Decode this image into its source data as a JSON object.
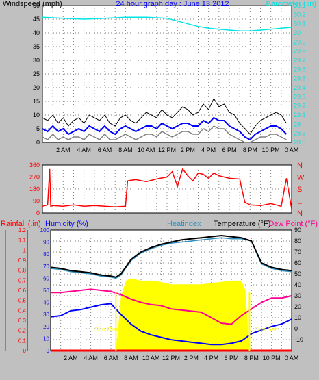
{
  "title": "24 hour graph day : June 13 2012",
  "colors": {
    "background": "#c0c0c0",
    "plot": "#ffffff",
    "grid": "#808080",
    "wind_gust": "#000000",
    "wind_avg": "#0000ff",
    "wind_min": "#808080",
    "barometer": "#00e5e5",
    "direction": "#ff0000",
    "temperature": "#000000",
    "heatindex": "#3090c0",
    "dewpoint": "#ff0090",
    "humidity": "#0000ff",
    "solar": "#ffff00",
    "rainfall": "#ff0000",
    "title": "#0000ff"
  },
  "chart_data": [
    {
      "type": "line",
      "name": "wind-barometer",
      "ylabel_left": "Windspeed (mph)",
      "ylabel_right": "Barometer (.in)",
      "ylim_left": [
        0,
        50
      ],
      "yticks_left": [
        "0",
        "5",
        "10",
        "15",
        "20",
        "25",
        "30",
        "35",
        "40",
        "45",
        "50"
      ],
      "ylim_right": [
        28.8,
        30.3
      ],
      "yticks_right": [
        "28.8",
        "28.9",
        "29",
        "29.1",
        "29.2",
        "29.3",
        "29.4",
        "29.5",
        "29.6",
        "29.7",
        "29.8",
        "29.9",
        "30",
        "30.1",
        "30.2",
        "30.3"
      ],
      "xlim": [
        0,
        24
      ],
      "xticks": [
        "2 AM",
        "4 AM",
        "6 AM",
        "8 AM",
        "10 AM",
        "12 PM",
        "2 PM",
        "4 PM",
        "6 PM",
        "8 PM",
        "10 PM",
        "0 AM"
      ],
      "grid": true,
      "series": [
        {
          "key": "gust",
          "x": [
            0,
            0.5,
            1,
            1.5,
            2,
            2.5,
            3,
            3.5,
            4,
            4.5,
            5,
            5.5,
            6,
            6.5,
            7,
            7.5,
            8,
            8.5,
            9,
            9.5,
            10,
            10.5,
            11,
            11.5,
            12,
            12.5,
            13,
            13.5,
            14,
            14.5,
            15,
            15.5,
            16,
            16.5,
            17,
            17.5,
            18,
            18.5,
            19,
            19.5,
            20,
            20.5,
            21,
            21.5,
            22,
            22.5,
            23,
            23.5
          ],
          "values": [
            9,
            8,
            10,
            7,
            9,
            6,
            8,
            9,
            7,
            10,
            9,
            8,
            10,
            7,
            6,
            9,
            10,
            8,
            7,
            9,
            11,
            10,
            9,
            12,
            10,
            9,
            11,
            13,
            12,
            10,
            11,
            14,
            12,
            16,
            13,
            14,
            11,
            10,
            7,
            5,
            3,
            6,
            8,
            9,
            10,
            11,
            10,
            7
          ]
        },
        {
          "key": "avg",
          "x": [
            0,
            0.5,
            1,
            1.5,
            2,
            2.5,
            3,
            3.5,
            4,
            4.5,
            5,
            5.5,
            6,
            6.5,
            7,
            7.5,
            8,
            8.5,
            9,
            9.5,
            10,
            10.5,
            11,
            11.5,
            12,
            12.5,
            13,
            13.5,
            14,
            14.5,
            15,
            15.5,
            16,
            16.5,
            17,
            17.5,
            18,
            18.5,
            19,
            19.5,
            20,
            20.5,
            21,
            21.5,
            22,
            22.5,
            23,
            23.5
          ],
          "values": [
            5,
            4,
            6,
            4,
            5,
            3,
            4,
            5,
            4,
            6,
            5,
            4,
            6,
            4,
            3,
            5,
            6,
            5,
            4,
            5,
            6,
            6,
            5,
            7,
            6,
            5,
            6,
            7,
            7,
            6,
            6,
            8,
            7,
            9,
            8,
            8,
            6,
            5,
            4,
            2,
            1,
            3,
            4,
            5,
            6,
            6,
            5,
            3
          ]
        },
        {
          "key": "min",
          "x": [
            0,
            0.5,
            1,
            1.5,
            2,
            2.5,
            3,
            3.5,
            4,
            4.5,
            5,
            5.5,
            6,
            6.5,
            7,
            7.5,
            8,
            8.5,
            9,
            9.5,
            10,
            10.5,
            11,
            11.5,
            12,
            12.5,
            13,
            13.5,
            14,
            14.5,
            15,
            15.5,
            16,
            16.5,
            17,
            17.5,
            18,
            18.5,
            19,
            19.5,
            20,
            20.5,
            21,
            21.5,
            22,
            22.5,
            23,
            23.5
          ],
          "values": [
            2,
            1,
            3,
            1,
            2,
            1,
            2,
            2,
            1,
            3,
            2,
            1,
            3,
            1,
            1,
            2,
            3,
            2,
            1,
            2,
            3,
            3,
            2,
            4,
            3,
            2,
            3,
            4,
            4,
            3,
            3,
            5,
            4,
            6,
            5,
            5,
            3,
            2,
            1,
            0,
            0,
            1,
            2,
            2,
            3,
            3,
            2,
            1
          ]
        },
        {
          "key": "barometer",
          "x": [
            0,
            2,
            4,
            6,
            8,
            10,
            12,
            13,
            14,
            15,
            16,
            17,
            18,
            19,
            20,
            21,
            22,
            23,
            24
          ],
          "values": [
            30.17,
            30.16,
            30.15,
            30.16,
            30.17,
            30.17,
            30.16,
            30.13,
            30.1,
            30.07,
            30.05,
            30.04,
            30.03,
            30.02,
            30.02,
            30.03,
            30.04,
            30.05,
            30.06
          ]
        }
      ]
    },
    {
      "type": "line",
      "name": "wind-direction",
      "ylabel_right_ticks": [
        "N",
        "W",
        "S",
        "E",
        "N"
      ],
      "ylim": [
        0,
        360
      ],
      "yticks_left": [
        "0",
        "90",
        "180",
        "270",
        "360"
      ],
      "xlim": [
        0,
        24
      ],
      "grid": true,
      "series": [
        {
          "key": "direction",
          "x": [
            0,
            0.5,
            0.7,
            0.8,
            1,
            2,
            3,
            4,
            5,
            6,
            7,
            8,
            8.2,
            8.5,
            9,
            10,
            11,
            12,
            12.5,
            13,
            13.5,
            14,
            14.5,
            15,
            15.5,
            16,
            16.5,
            17,
            17.5,
            18,
            19,
            19.2,
            19.5,
            20,
            21,
            22,
            22.5,
            23,
            23.5,
            24
          ],
          "values": [
            50,
            60,
            330,
            50,
            55,
            50,
            60,
            50,
            55,
            50,
            45,
            50,
            240,
            245,
            250,
            235,
            255,
            270,
            310,
            200,
            330,
            280,
            240,
            300,
            290,
            260,
            300,
            280,
            270,
            260,
            255,
            180,
            80,
            60,
            55,
            70,
            60,
            50,
            260,
            30
          ]
        }
      ]
    },
    {
      "type": "line",
      "name": "temperature-humidity",
      "ylabels": [
        "Rainfall (.in)",
        "Humidity (%)",
        "Heatindex",
        "Temperature (°F)",
        "Dew Point (°F)"
      ],
      "ylim_humidity": [
        0,
        100
      ],
      "yticks_humidity": [
        "0",
        "10",
        "20",
        "30",
        "40",
        "50",
        "60",
        "70",
        "80",
        "90",
        "100"
      ],
      "ylim_rain": [
        0,
        1.2
      ],
      "yticks_rain": [
        "0",
        "0.1",
        "0.2",
        "0.3",
        "0.4",
        "0.5",
        "0.6",
        "0.7",
        "0.8",
        "0.9",
        "1",
        "1.1",
        "1.2"
      ],
      "ylim_temp": [
        -20,
        90
      ],
      "yticks_temp": [
        "-10",
        "0",
        "10",
        "20",
        "30",
        "40",
        "50",
        "60",
        "70",
        "80",
        "90"
      ],
      "xlim": [
        0,
        24
      ],
      "annotations": [
        "Sun Rise",
        "Sun Set"
      ],
      "grid": true,
      "series": [
        {
          "key": "temperature",
          "x": [
            0,
            1,
            2,
            3,
            4,
            5,
            6,
            6.5,
            7,
            8,
            9,
            10,
            11,
            12,
            13,
            14,
            15,
            16,
            17,
            18,
            19,
            20,
            20.5,
            21,
            22,
            23,
            24
          ],
          "values": [
            56,
            55,
            53,
            52,
            51,
            49,
            48,
            47,
            50,
            63,
            70,
            74,
            77,
            79,
            81,
            82,
            83,
            84,
            85,
            84,
            83,
            80,
            70,
            60,
            56,
            54,
            53
          ]
        },
        {
          "key": "heatindex",
          "x": [
            0,
            1,
            2,
            3,
            4,
            5,
            6,
            6.5,
            7,
            8,
            9,
            10,
            11,
            12,
            13,
            14,
            15,
            16,
            17,
            18,
            19,
            20,
            20.5,
            21,
            22,
            23,
            24
          ],
          "values": [
            55,
            54,
            52,
            51,
            50,
            48,
            47,
            46,
            49,
            62,
            69,
            73,
            76,
            78,
            79,
            80,
            81,
            82,
            83,
            82,
            82,
            80,
            69,
            59,
            55,
            53,
            52
          ]
        },
        {
          "key": "dewpoint",
          "x": [
            0,
            1,
            2,
            3,
            4,
            5,
            6,
            7,
            8,
            9,
            10,
            11,
            12,
            13,
            14,
            15,
            16,
            17,
            18,
            19,
            20,
            21,
            22,
            23,
            24
          ],
          "values": [
            33,
            33,
            34,
            35,
            36,
            35,
            34,
            31,
            27,
            24,
            22,
            21,
            18,
            17,
            16,
            15,
            10,
            5,
            4,
            12,
            18,
            24,
            28,
            28,
            30
          ]
        },
        {
          "key": "humidity",
          "x": [
            0,
            1,
            2,
            3,
            4,
            5,
            6,
            7,
            8,
            9,
            10,
            11,
            12,
            13,
            14,
            15,
            16,
            17,
            18,
            19,
            20,
            21,
            22,
            23,
            24
          ],
          "values": [
            28,
            29,
            33,
            34,
            36,
            38,
            39,
            30,
            22,
            16,
            13,
            11,
            9,
            8,
            7,
            6,
            5,
            5,
            6,
            8,
            14,
            17,
            20,
            22,
            26
          ]
        },
        {
          "key": "solar",
          "x": [
            0,
            6.5,
            6.8,
            7,
            7.5,
            8,
            9,
            10,
            11,
            12,
            13,
            14,
            15,
            16,
            17,
            18,
            19,
            19.4,
            19.8,
            20,
            24
          ],
          "values": [
            0,
            0,
            25,
            45,
            58,
            60,
            58,
            58,
            57,
            55,
            55,
            55,
            55,
            56,
            57,
            58,
            58,
            50,
            0,
            0,
            0
          ]
        },
        {
          "key": "rainfall",
          "x": [
            0,
            24
          ],
          "values": [
            0,
            0
          ]
        }
      ]
    }
  ]
}
